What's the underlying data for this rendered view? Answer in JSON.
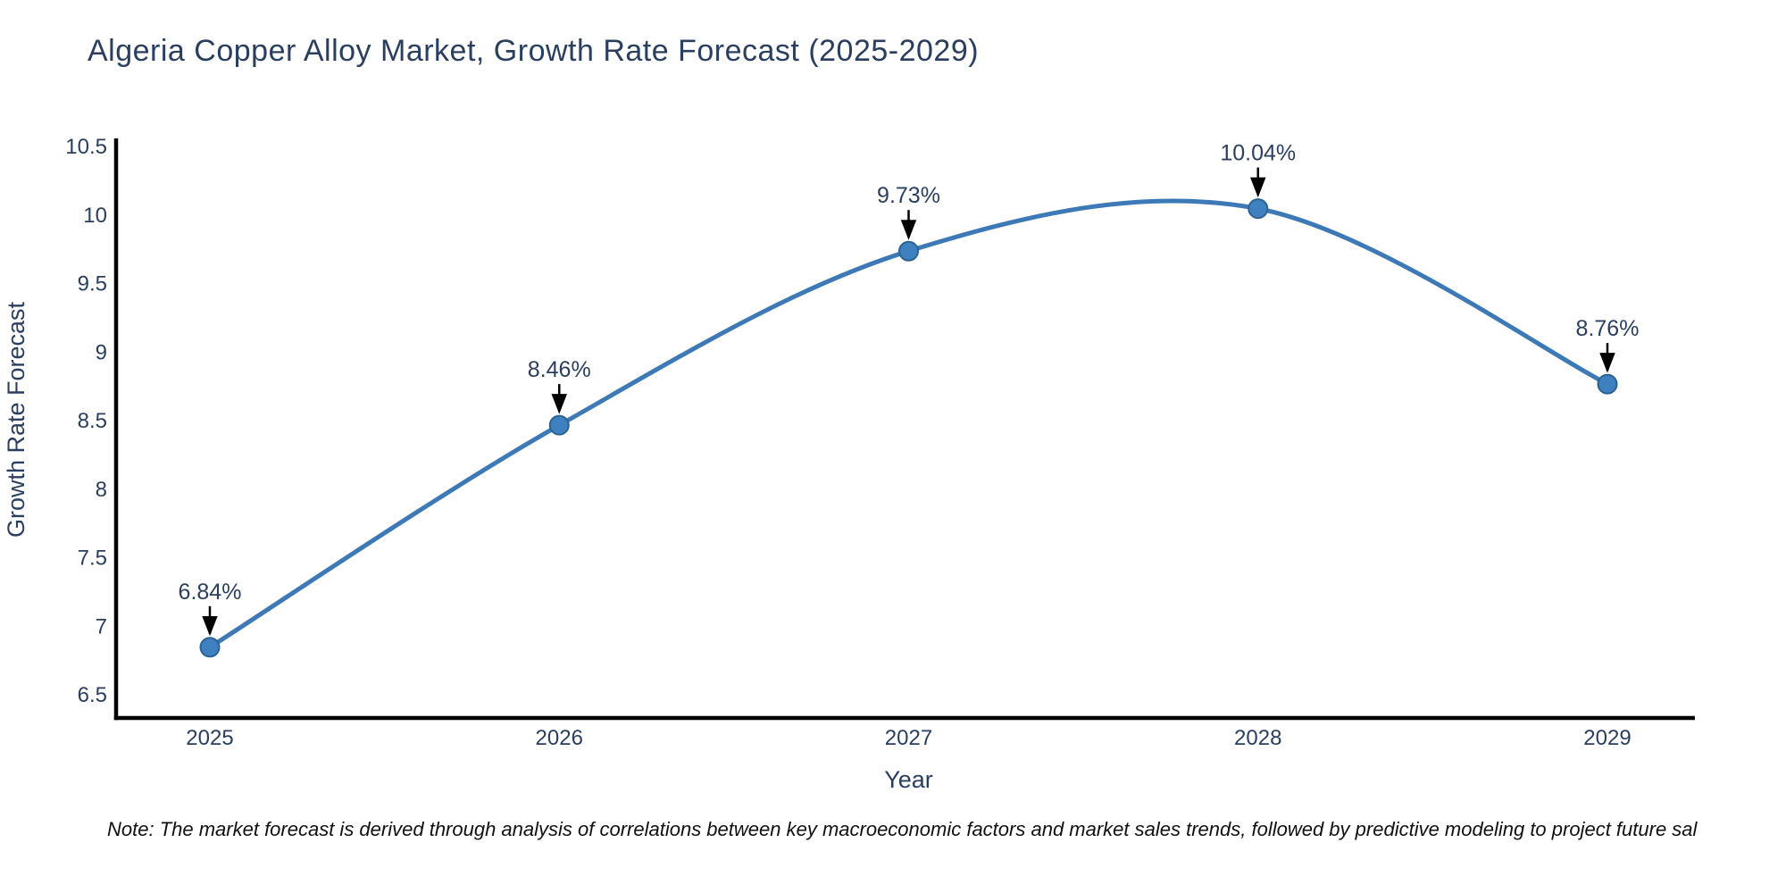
{
  "chart": {
    "title": "Algeria Copper Alloy Market, Growth Rate Forecast (2025-2029)",
    "note": "Note: The market forecast is derived through analysis of correlations between key macroeconomic factors and market sales trends, followed by predictive modeling to project future sal"
  },
  "chart_data": {
    "type": "line",
    "title": "Algeria Copper Alloy Market, Growth Rate Forecast (2025-2029)",
    "xlabel": "Year",
    "ylabel": "Growth Rate Forecast",
    "categories": [
      "2025",
      "2026",
      "2027",
      "2028",
      "2029"
    ],
    "values": [
      6.84,
      8.46,
      9.73,
      10.04,
      8.76
    ],
    "point_labels": [
      "6.84%",
      "8.46%",
      "9.73%",
      "10.04%",
      "8.76%"
    ],
    "series_name": "Growth Rate Forecast",
    "ylim": [
      6.5,
      10.5
    ],
    "yticks": [
      "6.5",
      "7",
      "7.5",
      "8",
      "8.5",
      "9",
      "9.5",
      "10",
      "10.5"
    ],
    "line_shape": "spline",
    "grid": false,
    "legend_position": "none",
    "annotations": "value labels with downward arrows above each point",
    "colors": {
      "line": "#3c79b6",
      "marker_fill": "#3f80c1",
      "marker_edge": "#2d6391",
      "axis_line": "#000000",
      "label_text": "#2a3f5f",
      "annotation_text": "#2a3f5f",
      "annotation_arrow": "#000000",
      "note_text": "#111111",
      "background": "#ffffff"
    }
  }
}
